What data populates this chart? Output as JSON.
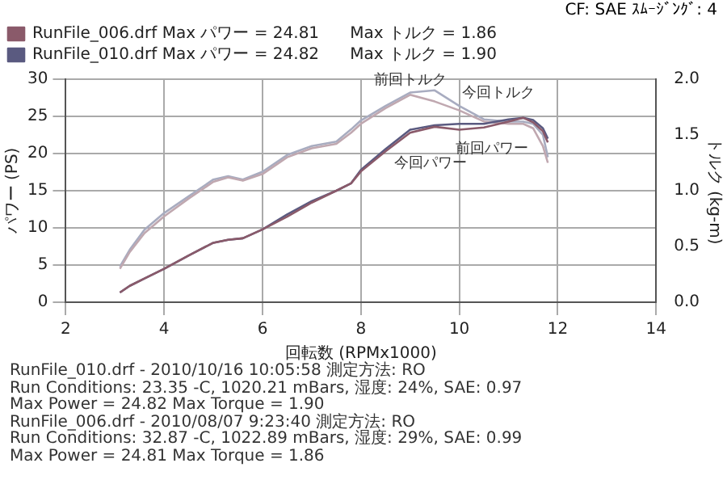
{
  "chart_data": {
    "type": "line",
    "subtitle": "CF: SAE  ｽﾑｰｼﾞﾝｸﾞ: 4",
    "xlabel": "回転数 (RPMx1000)",
    "ylabel": "パワー (PS)",
    "y2label": "トルク (kg-m)",
    "x": [
      3.1,
      3.3,
      3.6,
      4,
      4.5,
      5,
      5.3,
      5.6,
      6,
      6.5,
      7,
      7.5,
      7.8,
      8,
      8.5,
      9,
      9.5,
      10,
      10.5,
      11,
      11.3,
      11.5,
      11.7,
      11.8
    ],
    "series": [
      {
        "name": "RunFile_006.drf Max パワー = 24.81      Max トルク = 1.86",
        "color": "#8a5a6a",
        "values": [
          1.3,
          2.2,
          3.2,
          4.5,
          6.3,
          8,
          8.4,
          8.6,
          9.8,
          11.5,
          13.4,
          15,
          16,
          17.6,
          20.3,
          22.8,
          23.6,
          23.2,
          23.5,
          24.3,
          24.8,
          24.2,
          23,
          21.5
        ]
      },
      {
        "name": "RunFile_010.drf Max パワー = 24.82      Max トルク = 1.90",
        "color": "#5a5a80",
        "values": [
          1.3,
          2.2,
          3.2,
          4.5,
          6.3,
          8,
          8.4,
          8.6,
          9.8,
          11.8,
          13.6,
          15,
          16,
          17.8,
          20.6,
          23.2,
          23.8,
          24,
          24,
          24.6,
          24.8,
          24.5,
          23.4,
          22
        ]
      },
      {
        "color": "#c0a8b0",
        "axis": "y2",
        "values": [
          0.3,
          0.45,
          0.62,
          0.77,
          0.93,
          1.08,
          1.12,
          1.09,
          1.15,
          1.3,
          1.38,
          1.42,
          1.52,
          1.6,
          1.74,
          1.86,
          1.8,
          1.72,
          1.62,
          1.6,
          1.6,
          1.56,
          1.4,
          1.25
        ]
      },
      {
        "color": "#a8acc0",
        "axis": "y2",
        "values": [
          0.32,
          0.47,
          0.65,
          0.8,
          0.95,
          1.1,
          1.13,
          1.1,
          1.17,
          1.32,
          1.4,
          1.44,
          1.55,
          1.63,
          1.76,
          1.88,
          1.9,
          1.76,
          1.64,
          1.62,
          1.62,
          1.6,
          1.5,
          1.3
        ]
      }
    ],
    "xlim": [
      2,
      14
    ],
    "xticks": [
      2,
      4,
      6,
      8,
      10,
      12,
      14
    ],
    "ylim": [
      0,
      30
    ],
    "yticks": [
      0,
      5,
      10,
      15,
      20,
      25,
      30
    ],
    "y2lim": [
      0,
      2
    ],
    "y2ticks": [
      {
        "value": 0,
        "label": "0.0"
      },
      {
        "value": 0.5,
        "label": "0.5"
      },
      {
        "value": 1,
        "label": "1.0"
      },
      {
        "value": 1.5,
        "label": "1.5"
      },
      {
        "value": 2,
        "label": "2.0"
      }
    ],
    "grid": true,
    "legend": "top left",
    "marker": "none",
    "line_style": "solid",
    "annotations": [
      {
        "text": "前回トルク",
        "x": 9,
        "y": 27.9
      },
      {
        "text": "今回トルク",
        "x": 10,
        "y": 26.4
      },
      {
        "text": "前回パワー",
        "x": 10,
        "y": 23.2
      },
      {
        "text": "今回パワー",
        "x": 8.5,
        "y": 20.6
      },
      "RunFile_010.drf - 2010/10/16 10:05:58  測定方法: RO",
      "Run Conditions: 23.35 -C, 1020.21 mBars,  湿度: 24%, SAE: 0.97",
      "Max Power = 24.82  Max Torque = 1.90",
      "RunFile_006.drf - 2010/08/07 9:23:40  測定方法: RO",
      "Run Conditions: 32.87 -C, 1022.89 mBars,  湿度: 29%, SAE: 0.99",
      "Max Power = 24.81  Max Torque = 1.86"
    ]
  }
}
